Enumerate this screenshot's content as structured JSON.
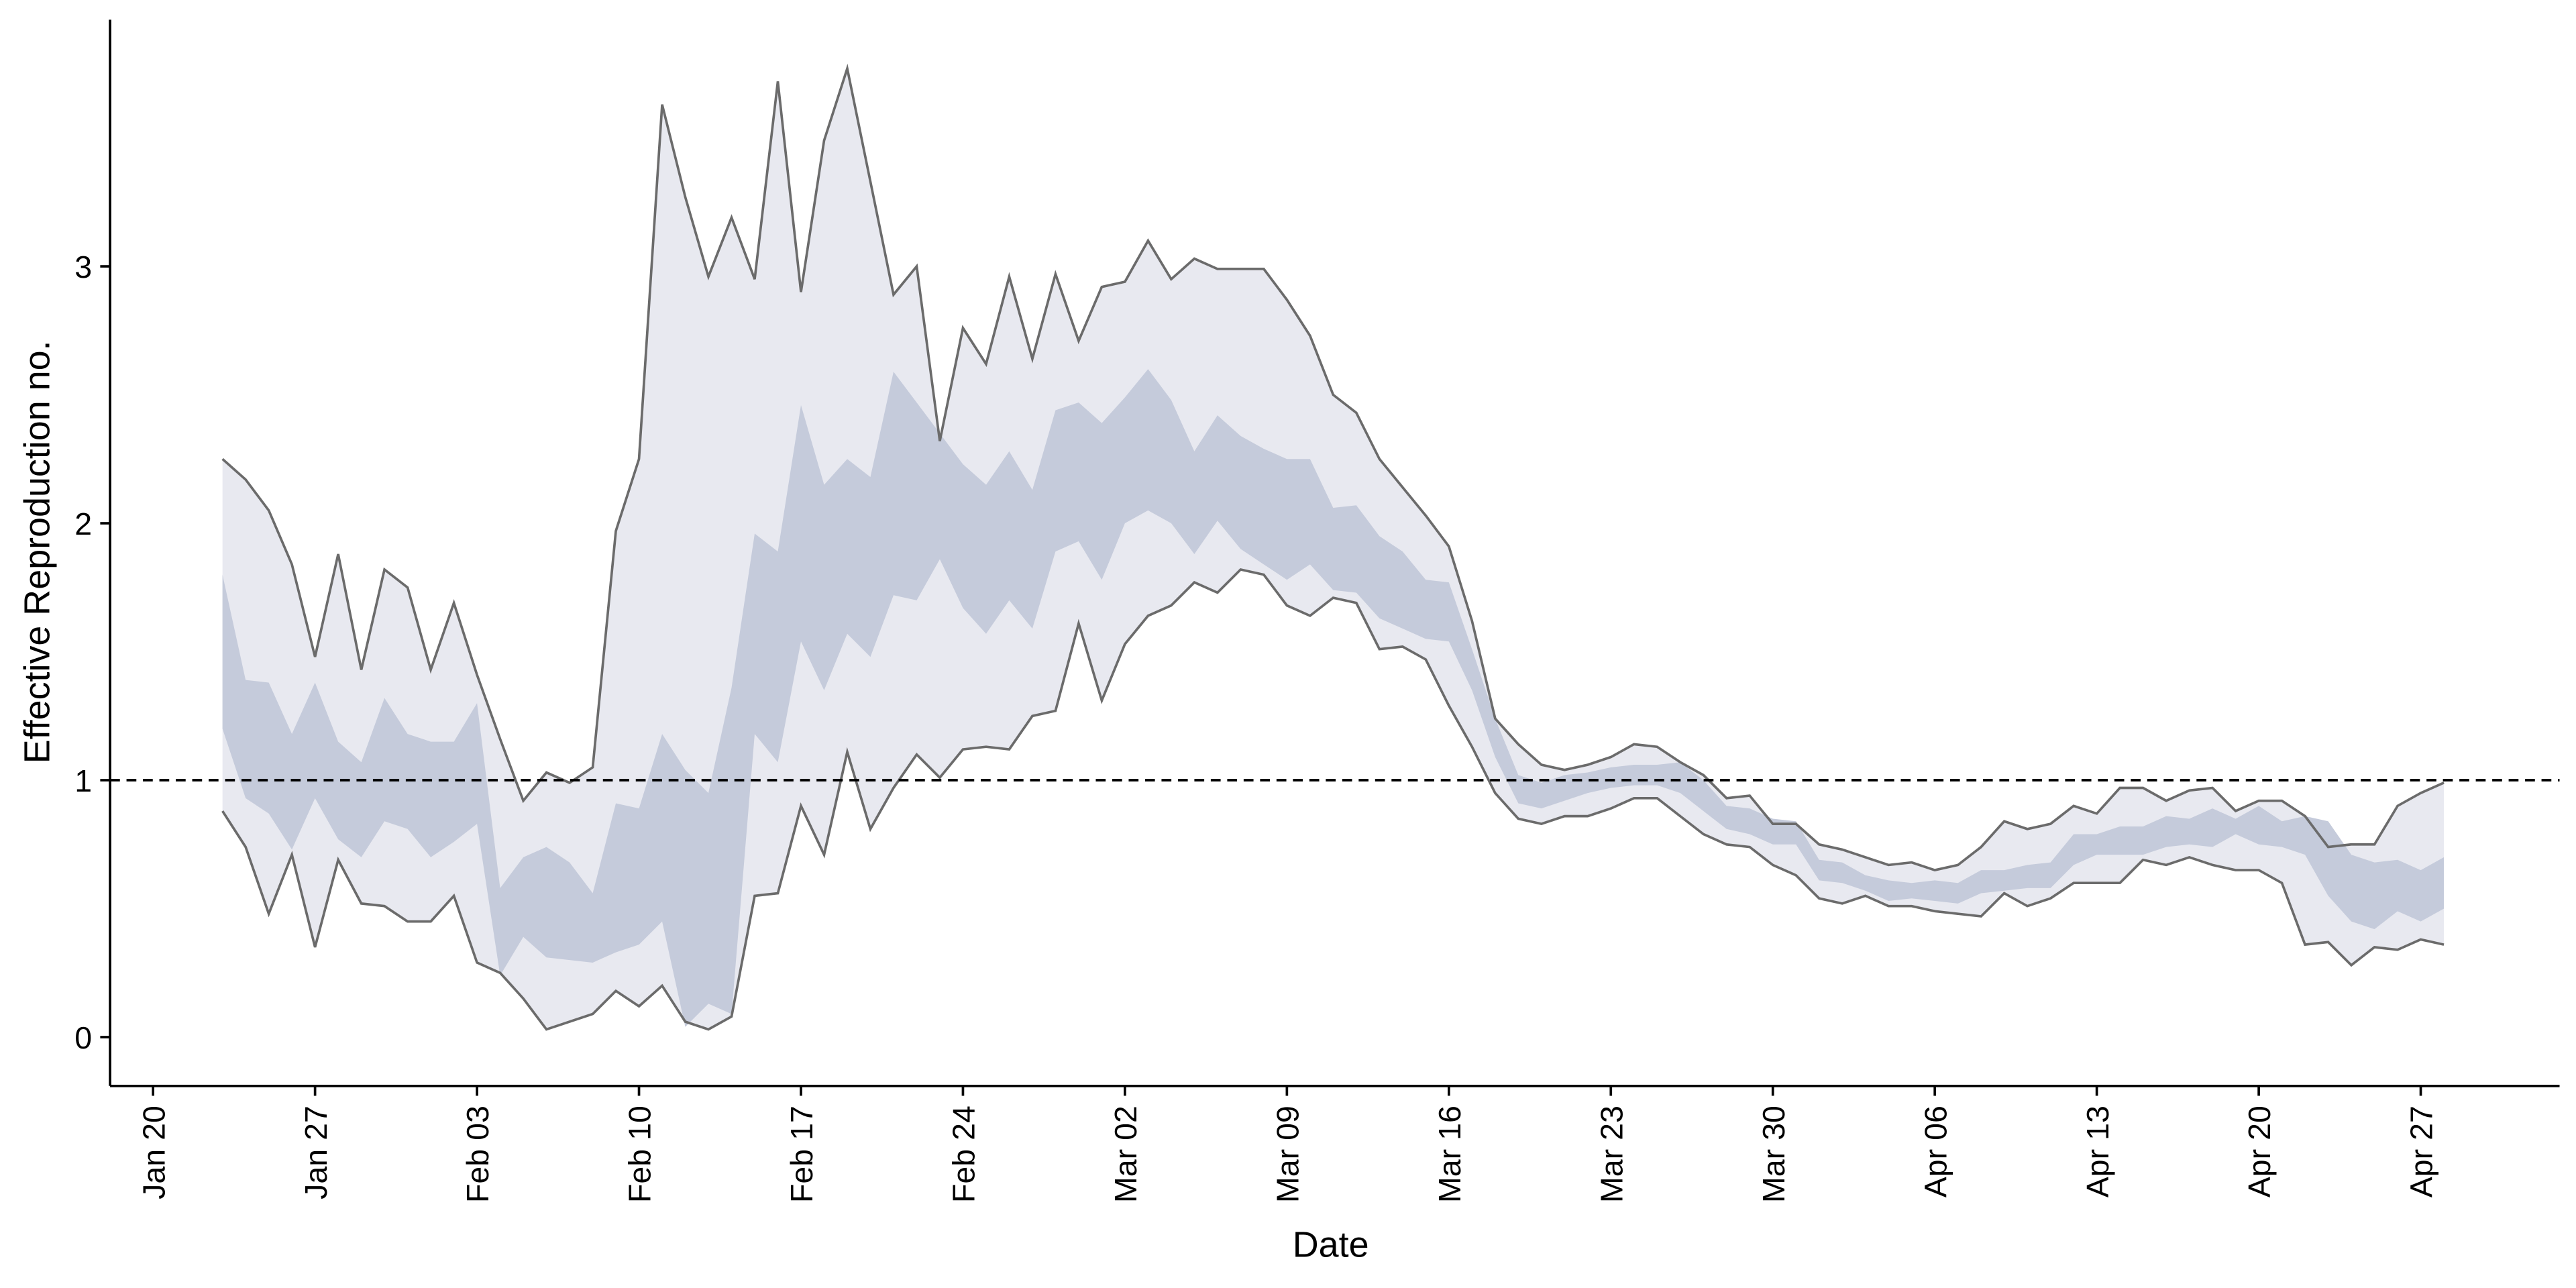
{
  "chart_data": {
    "type": "band",
    "x_label": "Date",
    "y_label": "Effective Reproduction no.",
    "x": [
      "Jan 23",
      "Jan 24",
      "Jan 25",
      "Jan 26",
      "Jan 27",
      "Jan 28",
      "Jan 29",
      "Jan 30",
      "Jan 31",
      "Feb 01",
      "Feb 02",
      "Feb 03",
      "Feb 04",
      "Feb 05",
      "Feb 06",
      "Feb 07",
      "Feb 08",
      "Feb 09",
      "Feb 10",
      "Feb 11",
      "Feb 12",
      "Feb 13",
      "Feb 14",
      "Feb 15",
      "Feb 16",
      "Feb 17",
      "Feb 18",
      "Feb 19",
      "Feb 20",
      "Feb 21",
      "Feb 22",
      "Feb 23",
      "Feb 24",
      "Feb 25",
      "Feb 26",
      "Feb 27",
      "Feb 28",
      "Feb 29",
      "Mar 01",
      "Mar 02",
      "Mar 03",
      "Mar 04",
      "Mar 05",
      "Mar 06",
      "Mar 07",
      "Mar 08",
      "Mar 09",
      "Mar 10",
      "Mar 11",
      "Mar 12",
      "Mar 13",
      "Mar 14",
      "Mar 15",
      "Mar 16",
      "Mar 17",
      "Mar 18",
      "Mar 19",
      "Mar 20",
      "Mar 21",
      "Mar 22",
      "Mar 23",
      "Mar 24",
      "Mar 25",
      "Mar 26",
      "Mar 27",
      "Mar 28",
      "Mar 29",
      "Mar 30",
      "Mar 31",
      "Apr 01",
      "Apr 02",
      "Apr 03",
      "Apr 04",
      "Apr 05",
      "Apr 06",
      "Apr 07",
      "Apr 08",
      "Apr 09",
      "Apr 10",
      "Apr 11",
      "Apr 12",
      "Apr 13",
      "Apr 14",
      "Apr 15",
      "Apr 16",
      "Apr 17",
      "Apr 18",
      "Apr 19",
      "Apr 20",
      "Apr 21",
      "Apr 22",
      "Apr 23",
      "Apr 24",
      "Apr 25",
      "Apr 26",
      "Apr 27",
      "Apr 28"
    ],
    "bands": [
      {
        "color": "#e8e9f0",
        "line_color": "#6b6b6b",
        "upper": [
          2.25,
          2.17,
          2.05,
          1.84,
          1.48,
          1.88,
          1.43,
          1.82,
          1.75,
          1.43,
          1.69,
          1.41,
          1.16,
          0.92,
          1.03,
          0.99,
          1.05,
          1.97,
          2.25,
          3.63,
          3.27,
          2.96,
          3.19,
          2.95,
          3.72,
          2.9,
          3.49,
          3.77,
          3.33,
          2.89,
          3.0,
          2.32,
          2.76,
          2.62,
          2.96,
          2.64,
          2.97,
          2.71,
          2.92,
          2.94,
          3.1,
          2.95,
          3.03,
          2.99,
          2.99,
          2.99,
          2.87,
          2.73,
          2.5,
          2.43,
          2.25,
          2.14,
          2.03,
          1.91,
          1.62,
          1.24,
          1.14,
          1.06,
          1.04,
          1.06,
          1.09,
          1.14,
          1.13,
          1.07,
          1.02,
          0.93,
          0.94,
          0.83,
          0.83,
          0.75,
          0.73,
          0.7,
          0.67,
          0.68,
          0.65,
          0.67,
          0.74,
          0.84,
          0.81,
          0.83,
          0.9,
          0.87,
          0.97,
          0.97,
          0.92,
          0.96,
          0.97,
          0.88,
          0.92,
          0.92,
          0.86,
          0.74,
          0.75,
          0.75,
          0.9,
          0.95,
          0.99
        ],
        "lower": [
          0.88,
          0.74,
          0.48,
          0.71,
          0.35,
          0.69,
          0.52,
          0.51,
          0.45,
          0.45,
          0.55,
          0.29,
          0.25,
          0.15,
          0.03,
          0.06,
          0.09,
          0.18,
          0.12,
          0.2,
          0.06,
          0.03,
          0.08,
          0.55,
          0.56,
          0.9,
          0.71,
          1.11,
          0.81,
          0.97,
          1.1,
          1.01,
          1.12,
          1.13,
          1.12,
          1.25,
          1.27,
          1.61,
          1.31,
          1.53,
          1.64,
          1.68,
          1.77,
          1.73,
          1.82,
          1.8,
          1.68,
          1.64,
          1.71,
          1.69,
          1.51,
          1.52,
          1.47,
          1.29,
          1.13,
          0.95,
          0.85,
          0.83,
          0.86,
          0.86,
          0.89,
          0.93,
          0.93,
          0.86,
          0.79,
          0.75,
          0.74,
          0.67,
          0.63,
          0.54,
          0.52,
          0.55,
          0.51,
          0.51,
          0.49,
          0.48,
          0.47,
          0.56,
          0.51,
          0.54,
          0.6,
          0.6,
          0.6,
          0.69,
          0.67,
          0.7,
          0.67,
          0.65,
          0.65,
          0.6,
          0.36,
          0.37,
          0.28,
          0.35,
          0.34,
          0.38,
          0.36
        ]
      },
      {
        "color": "#c5cbdb",
        "upper": [
          1.8,
          1.39,
          1.38,
          1.18,
          1.38,
          1.15,
          1.07,
          1.32,
          1.18,
          1.15,
          1.15,
          1.3,
          0.58,
          0.7,
          0.74,
          0.68,
          0.56,
          0.91,
          0.89,
          1.18,
          1.04,
          0.95,
          1.36,
          1.96,
          1.89,
          2.46,
          2.15,
          2.25,
          2.18,
          2.59,
          2.47,
          2.35,
          2.23,
          2.15,
          2.28,
          2.13,
          2.44,
          2.47,
          2.39,
          2.49,
          2.6,
          2.48,
          2.28,
          2.42,
          2.34,
          2.29,
          2.25,
          2.25,
          2.06,
          2.07,
          1.95,
          1.89,
          1.78,
          1.77,
          1.51,
          1.24,
          1.02,
          0.99,
          1.02,
          1.03,
          1.05,
          1.06,
          1.06,
          1.07,
          1.0,
          0.9,
          0.89,
          0.85,
          0.84,
          0.69,
          0.68,
          0.63,
          0.61,
          0.6,
          0.61,
          0.6,
          0.65,
          0.65,
          0.67,
          0.68,
          0.79,
          0.79,
          0.82,
          0.82,
          0.86,
          0.85,
          0.89,
          0.85,
          0.9,
          0.84,
          0.86,
          0.84,
          0.71,
          0.68,
          0.69,
          0.65,
          0.7
        ],
        "lower": [
          1.2,
          0.93,
          0.87,
          0.73,
          0.93,
          0.77,
          0.7,
          0.84,
          0.81,
          0.7,
          0.76,
          0.83,
          0.24,
          0.39,
          0.31,
          0.3,
          0.29,
          0.33,
          0.36,
          0.45,
          0.04,
          0.13,
          0.09,
          1.18,
          1.07,
          1.54,
          1.35,
          1.57,
          1.48,
          1.72,
          1.7,
          1.86,
          1.67,
          1.57,
          1.7,
          1.59,
          1.89,
          1.93,
          1.78,
          2.0,
          2.05,
          2.0,
          1.88,
          2.01,
          1.9,
          1.84,
          1.78,
          1.84,
          1.74,
          1.73,
          1.63,
          1.59,
          1.55,
          1.54,
          1.35,
          1.09,
          0.91,
          0.89,
          0.92,
          0.95,
          0.97,
          0.98,
          0.98,
          0.95,
          0.88,
          0.81,
          0.79,
          0.75,
          0.75,
          0.61,
          0.6,
          0.57,
          0.53,
          0.54,
          0.53,
          0.52,
          0.56,
          0.57,
          0.58,
          0.58,
          0.67,
          0.71,
          0.71,
          0.71,
          0.74,
          0.75,
          0.74,
          0.79,
          0.75,
          0.74,
          0.71,
          0.55,
          0.45,
          0.42,
          0.49,
          0.45,
          0.5
        ]
      }
    ],
    "hline": 1,
    "xlim": [
      "Jan 18",
      "May 03"
    ],
    "xticks": [
      "Jan 20",
      "Jan 27",
      "Feb 03",
      "Feb 10",
      "Feb 17",
      "Feb 24",
      "Mar 02",
      "Mar 09",
      "Mar 16",
      "Mar 23",
      "Mar 30",
      "Apr 06",
      "Apr 13",
      "Apr 20",
      "Apr 27"
    ],
    "ylim": [
      -0.19,
      3.96
    ],
    "yticks": [
      0,
      1,
      2,
      3
    ],
    "grid": false
  }
}
